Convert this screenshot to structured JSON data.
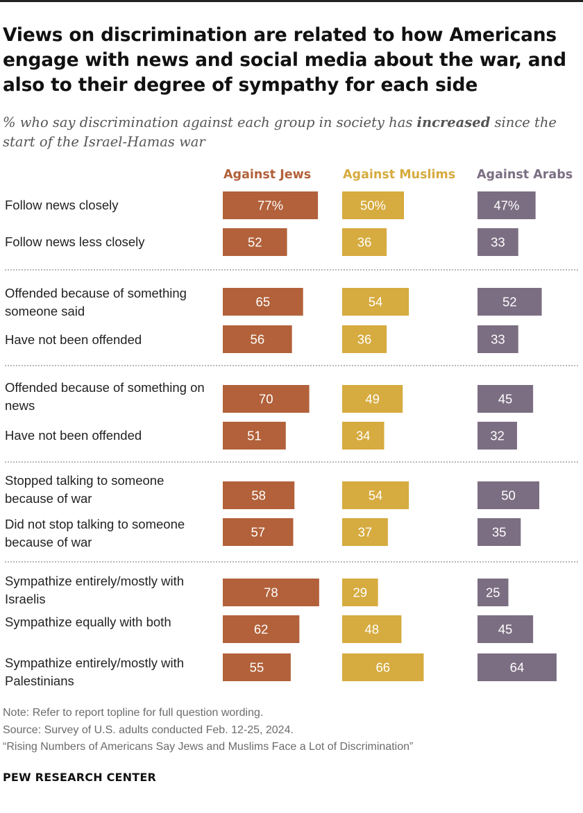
{
  "title": "Views on discrimination are related to how Americans engage with news and social media about the war, and also to their degree of sympathy for each side",
  "subtitle_pre": "% who say discrimination against each group in society has ",
  "subtitle_bold": "increased",
  "subtitle_post": " since the start of the Israel-Hamas war",
  "colors": {
    "jews": "#b2613a",
    "muslims": "#d6ab3f",
    "arabs": "#7b6e82"
  },
  "chart_data": {
    "type": "bar",
    "orientation": "horizontal",
    "title": "Views on discrimination are related to how Americans engage with news and social media about the war, and also to their degree of sympathy for each side",
    "subtitle": "% who say discrimination against each group in society has increased since the start of the Israel-Hamas war",
    "series": [
      {
        "name": "Against Jews",
        "color": "#b2613a",
        "values": [
          77,
          52,
          65,
          56,
          70,
          51,
          58,
          57,
          78,
          62,
          55
        ]
      },
      {
        "name": "Against Muslims",
        "color": "#d6ab3f",
        "values": [
          50,
          36,
          54,
          36,
          49,
          34,
          54,
          37,
          29,
          48,
          66
        ]
      },
      {
        "name": "Against Arabs",
        "color": "#7b6e82",
        "values": [
          47,
          33,
          52,
          33,
          45,
          32,
          50,
          35,
          25,
          45,
          64
        ]
      }
    ],
    "rows": [
      {
        "label": "Follow news closely",
        "labels": [
          "77%",
          "50%",
          "47%"
        ]
      },
      {
        "label": "Follow news less closely",
        "labels": [
          "52",
          "36",
          "33"
        ]
      },
      {
        "label": "Offended because of something someone said",
        "labels": [
          "65",
          "54",
          "52"
        ]
      },
      {
        "label": "Have not been offended",
        "labels": [
          "56",
          "36",
          "33"
        ]
      },
      {
        "label": "Offended because of something on news",
        "labels": [
          "70",
          "49",
          "45"
        ]
      },
      {
        "label": "Have not been offended",
        "labels": [
          "51",
          "34",
          "32"
        ]
      },
      {
        "label": "Stopped talking to someone because of war",
        "labels": [
          "58",
          "54",
          "50"
        ]
      },
      {
        "label": "Did not stop talking to someone because of war",
        "labels": [
          "57",
          "37",
          "35"
        ]
      },
      {
        "label": "Sympathize entirely/mostly with Israelis",
        "labels": [
          "78",
          "29",
          "25"
        ]
      },
      {
        "label": "Sympathize equally with both",
        "labels": [
          "62",
          "48",
          "45"
        ]
      },
      {
        "label": "Sympathize entirely/mostly with Palestinians",
        "labels": [
          "55",
          "66",
          "64"
        ]
      }
    ],
    "xlim": [
      0,
      100
    ],
    "legend": "column headers"
  },
  "notes": {
    "note": "Note: Refer to report topline for full question wording.",
    "source": "Source: Survey of U.S. adults conducted Feb. 12-25, 2024.",
    "report": "“Rising Numbers of Americans Say Jews and Muslims Face a Lot of Discrimination”"
  },
  "brand": "PEW RESEARCH CENTER"
}
